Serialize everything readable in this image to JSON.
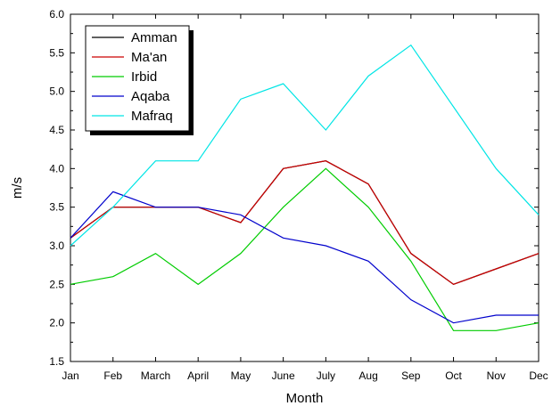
{
  "chart_data": {
    "type": "line",
    "title": "",
    "xlabel": "Month",
    "ylabel": "m/s",
    "categories": [
      "Jan",
      "Feb",
      "March",
      "April",
      "May",
      "June",
      "July",
      "Aug",
      "Sep",
      "Oct",
      "Nov",
      "Dec"
    ],
    "ylim": [
      1.5,
      6.0
    ],
    "yticks": [
      "1.5",
      "2.0",
      "2.5",
      "3.0",
      "3.5",
      "4.0",
      "4.5",
      "5.0",
      "5.5",
      "6.0"
    ],
    "grid": false,
    "legend_position": "top-left",
    "series": [
      {
        "name": "Amman",
        "color": "#000000",
        "values": [
          3.1,
          3.5,
          3.5,
          3.5,
          3.3,
          4.0,
          4.1,
          3.8,
          2.9,
          2.5,
          2.7,
          2.9
        ]
      },
      {
        "name": "Ma'an",
        "color": "#cc0000",
        "values": [
          3.1,
          3.5,
          3.5,
          3.5,
          3.3,
          4.0,
          4.1,
          3.8,
          2.9,
          2.5,
          2.7,
          2.9
        ]
      },
      {
        "name": "Irbid",
        "color": "#00cc00",
        "values": [
          2.5,
          2.6,
          2.9,
          2.5,
          2.9,
          3.5,
          4.0,
          3.5,
          2.8,
          1.9,
          1.9,
          2.0
        ]
      },
      {
        "name": "Aqaba",
        "color": "#0000cc",
        "values": [
          3.1,
          3.7,
          3.5,
          3.5,
          3.4,
          3.1,
          3.0,
          2.8,
          2.3,
          2.0,
          2.1,
          2.1
        ]
      },
      {
        "name": "Mafraq",
        "color": "#00e5e5",
        "values": [
          3.0,
          3.5,
          4.1,
          4.1,
          4.9,
          5.1,
          4.5,
          5.2,
          5.6,
          4.8,
          4.0,
          3.4
        ]
      }
    ]
  }
}
